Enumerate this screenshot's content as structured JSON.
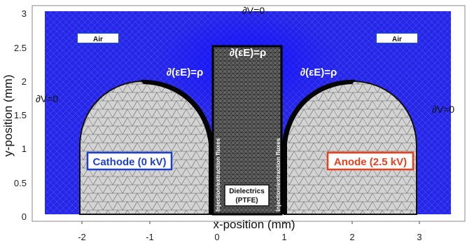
{
  "axes": {
    "x_title": "x-position (mm)",
    "y_title": "y-position (mm)",
    "x_ticks": [
      "-2",
      "-1",
      "0",
      "1",
      "2",
      "3"
    ],
    "y_ticks": [
      "3",
      "2.5",
      "2",
      "1.5",
      "1",
      "0.5",
      "0"
    ]
  },
  "labels": {
    "top_bc": "∂V=0",
    "left_bc": "∂V=0",
    "right_bc": "∂V=0",
    "gauss_left": "∂(εE)=ρ",
    "gauss_center": "∂(εE)=ρ",
    "gauss_right": "∂(εE)=ρ",
    "air_left": "Air",
    "air_right": "Air",
    "cathode": "Cathode (0 kV)",
    "anode": "Anode (2.5 kV)",
    "dielectric_line1": "Dielectrics",
    "dielectric_line2": "(PTFE)",
    "flux_left": "Injection/extraction fluxes",
    "flux_right": "Injection/extraction fluxes"
  },
  "colors": {
    "air_mesh": "#2222e6",
    "electrode_fill": "#d2d2d2",
    "dielectric_fill": "#3a3a3a",
    "cathode_border": "#1f3fd0",
    "anode_text": "#e8401c",
    "anode_border": "#e8401c"
  }
}
